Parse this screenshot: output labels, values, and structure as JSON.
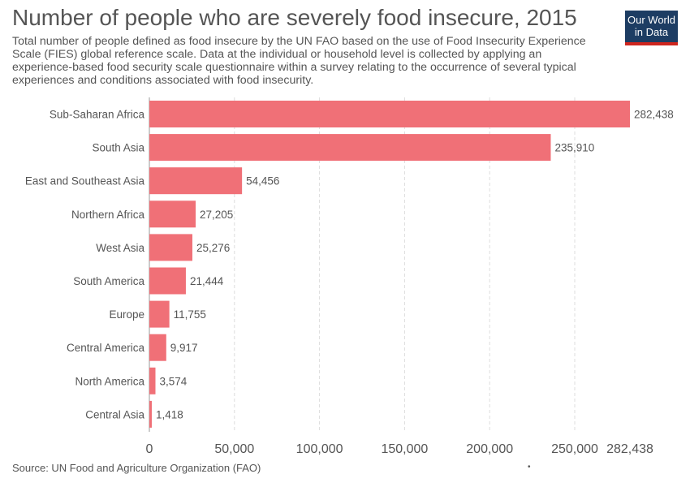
{
  "title": "Number of people who are severely food insecure, 2015",
  "subtitle": "Total number of people defined as food insecure by the UN FAO based on the use of Food Insecurity Experience Scale (FIES) global reference scale. Data at the individual or household level is collected by applying an experience-based food security scale questionnaire within a survey relating to the occurrence of several typical experiences and conditions associated with food insecurity.",
  "logo": {
    "line1": "Our World",
    "line2": "in Data"
  },
  "source": "Source: UN Food and Agriculture Organization (FAO)",
  "footer_dot": "•",
  "colors": {
    "bar": "#f07077",
    "grid": "#dddddd",
    "text": "#555555",
    "logo_bg": "#1d3d63",
    "logo_accent": "#ce261e"
  },
  "chart_data": {
    "type": "bar",
    "orientation": "horizontal",
    "title": "Number of people who are severely food insecure, 2015",
    "categories": [
      "Sub-Saharan Africa",
      "South Asia",
      "East and Southeast Asia",
      "Northern Africa",
      "West Asia",
      "South America",
      "Europe",
      "Central America",
      "North America",
      "Central Asia"
    ],
    "values": [
      282438,
      235910,
      54456,
      27205,
      25276,
      21444,
      11755,
      9917,
      3574,
      1418
    ],
    "value_labels": [
      "282,438",
      "235,910",
      "54,456",
      "27,205",
      "25,276",
      "21,444",
      "11,755",
      "9,917",
      "3,574",
      "1,418"
    ],
    "xticks": [
      0,
      50000,
      100000,
      150000,
      200000,
      250000,
      282438
    ],
    "xtick_labels": [
      "0",
      "50,000",
      "100,000",
      "150,000",
      "200,000",
      "250,000",
      "282,438"
    ],
    "xlim": [
      0,
      282438
    ],
    "grid": true
  }
}
